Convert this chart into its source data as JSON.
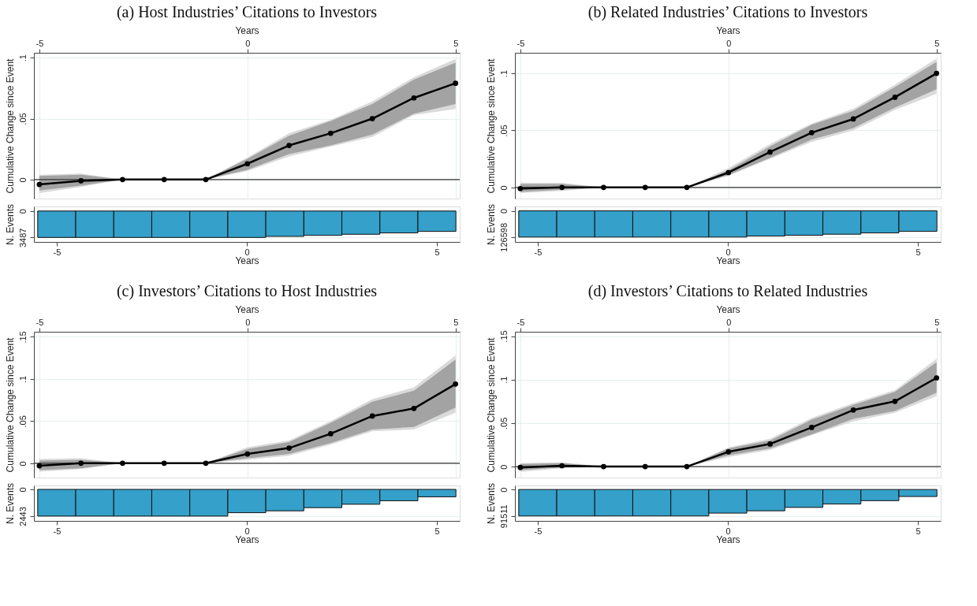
{
  "chart_data": [
    {
      "type": "line",
      "title": "(a) Host Industries’ Citations to Investors",
      "xlabel": "Years",
      "ylabel": "Cumulative Change since Event",
      "x": [
        -5,
        -4,
        -3,
        -2,
        -1,
        0,
        1,
        2,
        3,
        4,
        5
      ],
      "xlim": [
        -5.13,
        5.1
      ],
      "xticks": [
        -5,
        0,
        5
      ],
      "ylim": [
        -0.0156,
        0.104
      ],
      "yticks": [
        0,
        {
          "value": 0.05,
          "label": ".05"
        },
        {
          "value": 0.1,
          "label": ".1"
        }
      ],
      "grid": true,
      "line_style": "solid",
      "ref_lines": [
        {
          "axis": "y",
          "value": 0,
          "color": "#333333"
        }
      ],
      "series": [
        {
          "color": "#dadada",
          "values": [
            null,
            null,
            null,
            null,
            null,
            null,
            null,
            null,
            null,
            null,
            null
          ],
          "upper": [
            0.004,
            0.005,
            0,
            0,
            0,
            0.018,
            0.038,
            0.049,
            0.064,
            0.084,
            0.099
          ],
          "lower": [
            -0.011,
            -0.006,
            0,
            0,
            0,
            0.007,
            0.019,
            0.027,
            0.035,
            0.053,
            0.058
          ]
        },
        {
          "type": "line",
          "color": "#000000",
          "marker": "circle",
          "values": [
            -0.004,
            -0.001,
            0,
            0,
            0,
            0.013,
            0.028,
            0.038,
            0.05,
            0.067,
            0.079
          ],
          "lower": [
            -0.009,
            -0.005,
            0,
            0,
            0,
            0.008,
            0.021,
            0.028,
            0.037,
            0.054,
            0.062
          ],
          "upper": [
            0.003,
            0.004,
            0,
            0,
            0,
            0.017,
            0.036,
            0.048,
            0.062,
            0.082,
            0.096
          ]
        }
      ]
    },
    {
      "type": "bar",
      "xlabel": "Years",
      "ylabel": "N. Events",
      "x": [
        -5,
        -4,
        -3,
        -2,
        -1,
        0,
        1,
        2,
        3,
        4,
        5
      ],
      "xlim": [
        -5.6,
        5.6
      ],
      "xticks": [
        -5,
        0,
        5
      ],
      "ylim": [
        4080,
        -600
      ],
      "yticks": [
        0,
        3487
      ],
      "grid": "y",
      "color": "#35a0c9",
      "values": [
        3487,
        3487,
        3487,
        3487,
        3487,
        3487,
        3350,
        3210,
        3070,
        2890,
        2690
      ]
    },
    {
      "type": "line",
      "title": "(b) Related Industries’ Citations to Investors",
      "xlabel": "Years",
      "ylabel": "Cumulative Change since Event",
      "x": [
        -5,
        -4,
        -3,
        -2,
        -1,
        0,
        1,
        2,
        3,
        4,
        5
      ],
      "xlim": [
        -5.13,
        5.1
      ],
      "xticks": [
        -5,
        0,
        5
      ],
      "ylim": [
        -0.0098,
        0.118
      ],
      "yticks": [
        0,
        {
          "value": 0.05,
          "label": ".05"
        },
        {
          "value": 0.1,
          "label": ".1"
        }
      ],
      "grid": true,
      "line_style": "solid",
      "ref_lines": [
        {
          "axis": "y",
          "value": 0,
          "color": "#333333"
        }
      ],
      "series": [
        {
          "color": "#dadada",
          "values": [
            null,
            null,
            null,
            null,
            null,
            null,
            null,
            null,
            null,
            null,
            null
          ],
          "upper": [
            0.004,
            0.004,
            0,
            0,
            0,
            0.017,
            0.038,
            0.056,
            0.069,
            0.09,
            0.113
          ],
          "lower": [
            -0.005,
            -0.003,
            0,
            0,
            0,
            0.01,
            0.025,
            0.04,
            0.05,
            0.068,
            0.082
          ]
        },
        {
          "type": "line",
          "color": "#000000",
          "marker": "circle",
          "values": [
            -0.001,
            0,
            0,
            0,
            0,
            0.013,
            0.031,
            0.048,
            0.06,
            0.079,
            0.1
          ],
          "lower": [
            -0.004,
            -0.002,
            0,
            0,
            0,
            0.011,
            0.026,
            0.042,
            0.052,
            0.07,
            0.086
          ],
          "upper": [
            0.003,
            0.003,
            0,
            0,
            0,
            0.015,
            0.036,
            0.055,
            0.067,
            0.088,
            0.11
          ]
        }
      ]
    },
    {
      "type": "bar",
      "xlabel": "Years",
      "ylabel": "N. Events",
      "x": [
        -5,
        -4,
        -3,
        -2,
        -1,
        0,
        1,
        2,
        3,
        4,
        5
      ],
      "xlim": [
        -5.6,
        5.6
      ],
      "xticks": [
        -5,
        0,
        5
      ],
      "ylim": [
        150000,
        -21000
      ],
      "yticks": [
        0,
        126598
      ],
      "grid": "y",
      "color": "#35a0c9",
      "values": [
        126598,
        126598,
        126598,
        126598,
        126598,
        126598,
        121600,
        117800,
        112800,
        106500,
        99000
      ]
    },
    {
      "type": "line",
      "title": "(c) Investors’ Citations to Host Industries",
      "xlabel": "Years",
      "ylabel": "Cumulative Change since Event",
      "x": [
        -5,
        -4,
        -3,
        -2,
        -1,
        0,
        1,
        2,
        3,
        4,
        5
      ],
      "xlim": [
        -5.13,
        5.1
      ],
      "xticks": [
        -5,
        0,
        5
      ],
      "ylim": [
        -0.017,
        0.156
      ],
      "yticks": [
        0,
        {
          "value": 0.05,
          "label": ".05"
        },
        {
          "value": 0.1,
          "label": ".1"
        },
        {
          "value": 0.15,
          "label": ".15"
        }
      ],
      "grid": true,
      "line_style": "solid",
      "ref_lines": [
        {
          "axis": "y",
          "value": 0,
          "color": "#333333"
        }
      ],
      "series": [
        {
          "color": "#dadada",
          "values": [
            null,
            null,
            null,
            null,
            null,
            null,
            null,
            null,
            null,
            null,
            null
          ],
          "upper": [
            0.005,
            0.006,
            0,
            0,
            0,
            0.019,
            0.027,
            0.05,
            0.076,
            0.09,
            0.128
          ],
          "lower": [
            -0.01,
            -0.007,
            0,
            0,
            0,
            0.004,
            0.009,
            0.022,
            0.038,
            0.04,
            0.06
          ]
        },
        {
          "type": "line",
          "color": "#000000",
          "marker": "circle",
          "values": [
            -0.003,
            0,
            0,
            0,
            0,
            0.011,
            0.018,
            0.035,
            0.056,
            0.065,
            0.094
          ],
          "lower": [
            -0.008,
            -0.006,
            0,
            0,
            0,
            0.006,
            0.011,
            0.024,
            0.04,
            0.043,
            0.066
          ],
          "upper": [
            0.003,
            0.004,
            0,
            0,
            0,
            0.017,
            0.025,
            0.048,
            0.073,
            0.086,
            0.123
          ]
        }
      ]
    },
    {
      "type": "bar",
      "xlabel": "Years",
      "ylabel": "N. Events",
      "x": [
        -5,
        -4,
        -3,
        -2,
        -1,
        0,
        1,
        2,
        3,
        4,
        5
      ],
      "xlim": [
        -5.6,
        5.6
      ],
      "xticks": [
        -5,
        0,
        5
      ],
      "ylim": [
        2880,
        -360
      ],
      "yticks": [
        0,
        2443
      ],
      "grid": "y",
      "color": "#35a0c9",
      "values": [
        2443,
        2443,
        2443,
        2443,
        2443,
        2130,
        1960,
        1670,
        1360,
        1040,
        680
      ]
    },
    {
      "type": "line",
      "title": "(d) Investors’ Citations to Related Industries",
      "xlabel": "Years",
      "ylabel": "Cumulative Change since Event",
      "x": [
        -5,
        -4,
        -3,
        -2,
        -1,
        0,
        1,
        2,
        3,
        4,
        5
      ],
      "xlim": [
        -5.13,
        5.1
      ],
      "xticks": [
        -5,
        0,
        5
      ],
      "ylim": [
        -0.0126,
        0.155
      ],
      "yticks": [
        0,
        {
          "value": 0.05,
          "label": ".05"
        },
        {
          "value": 0.1,
          "label": ".1"
        },
        {
          "value": 0.15,
          "label": ".15"
        }
      ],
      "grid": true,
      "line_style": "solid",
      "ref_lines": [
        {
          "axis": "y",
          "value": 0,
          "color": "#333333"
        }
      ],
      "series": [
        {
          "color": "#dadada",
          "values": [
            null,
            null,
            null,
            null,
            null,
            null,
            null,
            null,
            null,
            null,
            null
          ],
          "upper": [
            0.004,
            0.005,
            0,
            0,
            0,
            0.022,
            0.032,
            0.056,
            0.073,
            0.088,
            0.124
          ],
          "lower": [
            -0.006,
            -0.002,
            0,
            0,
            0,
            0.011,
            0.019,
            0.036,
            0.052,
            0.062,
            0.081
          ]
        },
        {
          "type": "line",
          "color": "#000000",
          "marker": "circle",
          "values": [
            -0.001,
            0.001,
            0,
            0,
            0,
            0.017,
            0.026,
            0.045,
            0.065,
            0.075,
            0.102
          ],
          "lower": [
            -0.004,
            -0.001,
            0,
            0,
            0,
            0.013,
            0.021,
            0.037,
            0.055,
            0.064,
            0.085
          ],
          "upper": [
            0.003,
            0.004,
            0,
            0,
            0,
            0.021,
            0.03,
            0.054,
            0.071,
            0.086,
            0.12
          ]
        }
      ]
    },
    {
      "type": "bar",
      "xlabel": "Years",
      "ylabel": "N. Events",
      "x": [
        -5,
        -4,
        -3,
        -2,
        -1,
        0,
        1,
        2,
        3,
        4,
        5
      ],
      "xlim": [
        -5.6,
        5.6
      ],
      "xticks": [
        -5,
        0,
        5
      ],
      "ylim": [
        108500,
        -14000
      ],
      "yticks": [
        0,
        91511
      ],
      "grid": "y",
      "color": "#35a0c9",
      "values": [
        91511,
        91511,
        91511,
        91511,
        91511,
        81600,
        73600,
        61900,
        50200,
        38600,
        24200
      ]
    }
  ]
}
